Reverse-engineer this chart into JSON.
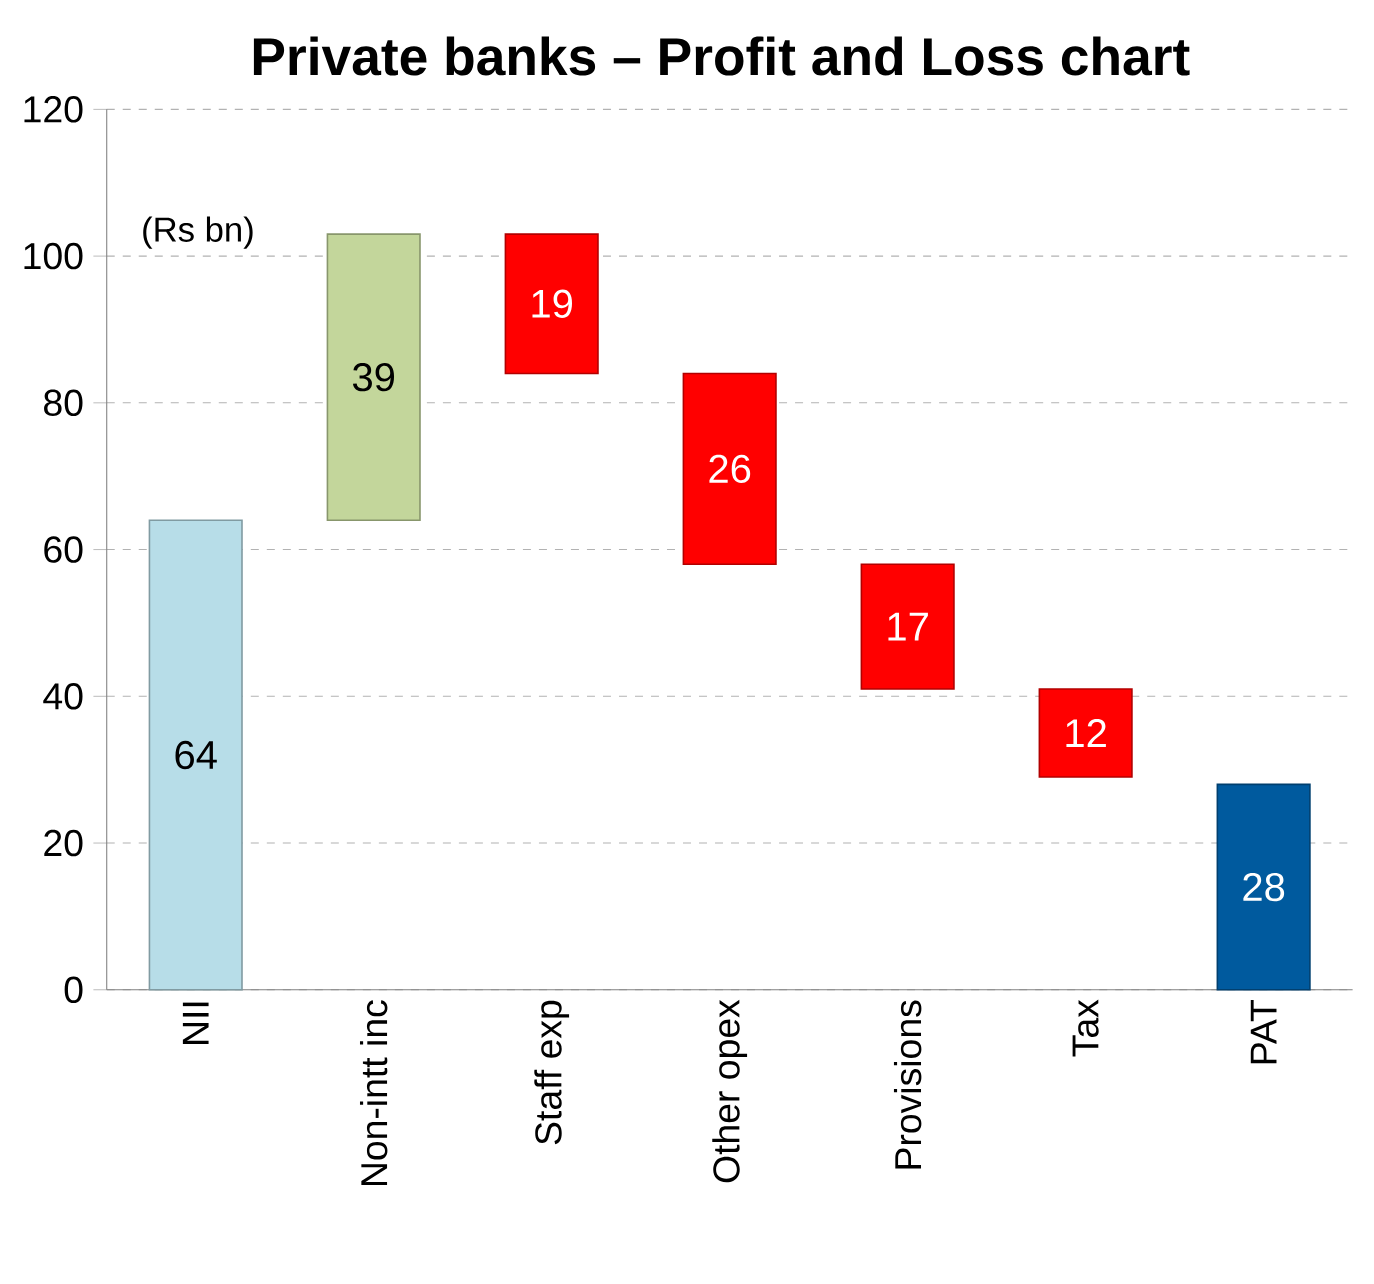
{
  "chart_data": {
    "type": "bar",
    "title": "Private banks – Profit and Loss chart",
    "categories": [
      "NII",
      "Non-intt inc",
      "Staff exp",
      "Other opex",
      "Provisions",
      "Tax",
      "PAT"
    ],
    "values": [
      64,
      39,
      19,
      26,
      17,
      12,
      28
    ],
    "base": [
      0,
      64,
      84,
      58,
      41,
      29,
      0
    ],
    "colors": [
      "#b7dde8",
      "#c3d69b",
      "#ff0000",
      "#ff0000",
      "#ff0000",
      "#ff0000",
      "#005a9e"
    ],
    "ylim": [
      0,
      120
    ],
    "yticks": [
      0,
      20,
      40,
      60,
      80,
      100,
      120
    ],
    "grid": "y",
    "data_labels": true,
    "annotations": [
      "(Rs bn)"
    ]
  }
}
